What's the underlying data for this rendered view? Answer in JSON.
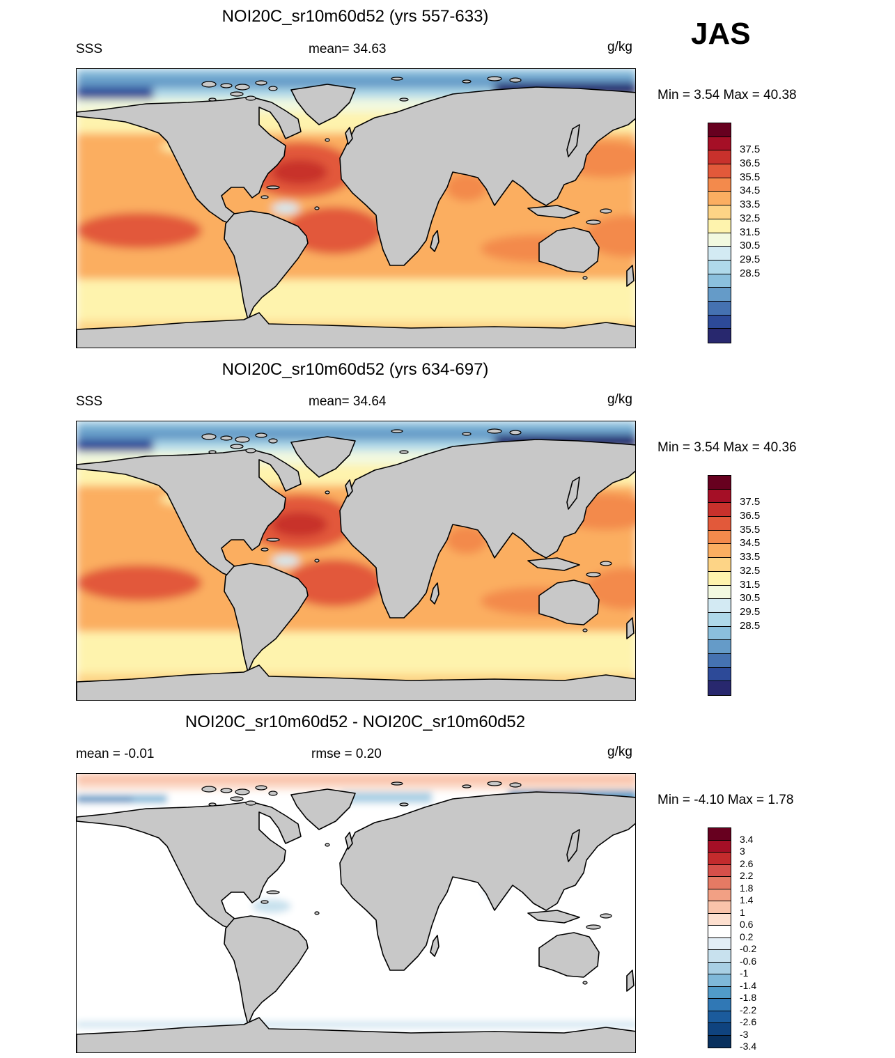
{
  "season_label": "JAS",
  "panels": [
    {
      "title": "NOI20C_sr10m60d52 (yrs 557-633)",
      "left_label": "SSS",
      "center_label": "mean=  34.63",
      "units": "g/kg",
      "minmax": "Min =   3.54 Max =  40.38",
      "kind": "abs"
    },
    {
      "title": "NOI20C_sr10m60d52 (yrs 634-697)",
      "left_label": "SSS",
      "center_label": "mean=  34.64",
      "units": "g/kg",
      "minmax": "Min =   3.54 Max =  40.36",
      "kind": "abs"
    },
    {
      "title": "NOI20C_sr10m60d52 - NOI20C_sr10m60d52",
      "left_label": "mean =  -0.01",
      "center_label": "rmse =   0.20",
      "units": "g/kg",
      "minmax": "Min =  -4.10 Max =   1.78",
      "kind": "diff"
    }
  ],
  "colorbars": {
    "abs": {
      "colors": [
        "#67001f",
        "#a50f26",
        "#c8312c",
        "#e2593a",
        "#f38a4c",
        "#fbae61",
        "#fdd486",
        "#fef3ad",
        "#f2f9e0",
        "#d3eaf3",
        "#afd9ea",
        "#8bc0dd",
        "#659bc8",
        "#4572b1",
        "#2d4a98",
        "#28286e"
      ],
      "labels": [
        "37.5",
        "36.5",
        "35.5",
        "34.5",
        "33.5",
        "32.5",
        "31.5",
        "30.5",
        "29.5",
        "28.5"
      ]
    },
    "diff": {
      "colors": [
        "#67001f",
        "#a50f26",
        "#c32b2d",
        "#d6504a",
        "#e57a64",
        "#f2a084",
        "#f9c3aa",
        "#fddfcf",
        "#ffffff",
        "#e3eef6",
        "#c8e1ee",
        "#a8cfe4",
        "#7fb8d9",
        "#519bc9",
        "#3078b5",
        "#1b5b9c",
        "#0f437f",
        "#08305e"
      ],
      "labels": [
        "3.4",
        "3",
        "2.6",
        "2.2",
        "1.8",
        "1.4",
        "1",
        "0.6",
        "0.2",
        "-0.2",
        "-0.6",
        "-1",
        "-1.4",
        "-1.8",
        "-2.2",
        "-2.6",
        "-3",
        "-3.4"
      ]
    }
  },
  "colors": {
    "land": "#c8c8c8",
    "coast": "#000000"
  }
}
